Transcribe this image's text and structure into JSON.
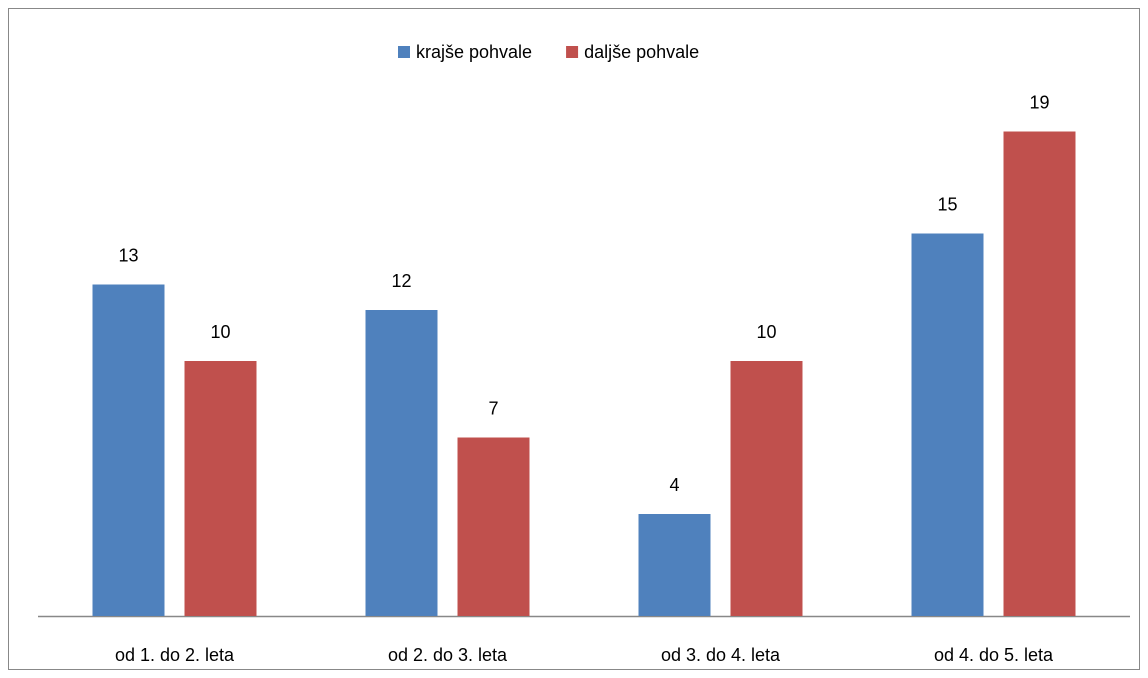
{
  "chart_data": {
    "type": "bar",
    "categories": [
      "od 1. do 2. leta",
      "od 2. do 3. leta",
      "od 3. do 4. leta",
      "od 4. do 5. leta"
    ],
    "series": [
      {
        "name": "krajše pohvale",
        "color": "#4f81bd",
        "values": [
          13,
          12,
          4,
          15
        ]
      },
      {
        "name": "daljše pohvale",
        "color": "#c0504d",
        "values": [
          10,
          7,
          10,
          19
        ]
      }
    ],
    "legend": "top"
  }
}
